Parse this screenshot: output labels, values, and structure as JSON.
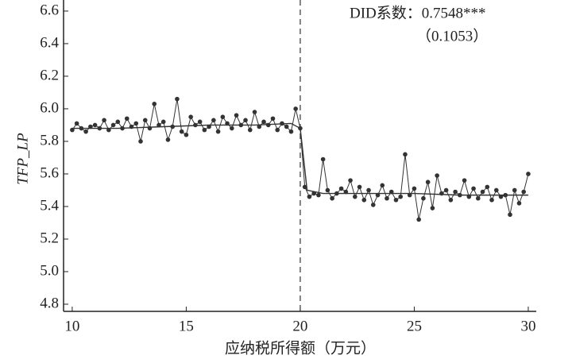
{
  "chart_data": {
    "type": "line",
    "y_label": "TFP_LP",
    "x_label": "应纳税所得额（万元）",
    "annotations": [
      "DID系数：0.7548***",
      "（0.1053）"
    ],
    "cutoff": 20,
    "xlim": [
      9.62,
      30.35
    ],
    "ylim": [
      4.756,
      6.668
    ],
    "xticks": [
      10,
      15,
      20,
      25,
      30
    ],
    "yticks": [
      {
        "value": 4.8,
        "label": "4.8"
      },
      {
        "value": 5,
        "label": "5.0"
      },
      5.2,
      5.4,
      5.6,
      5.8,
      {
        "value": 6,
        "label": "6.0"
      },
      6.2,
      6.4,
      6.6
    ],
    "series": [
      {
        "color": "#333333",
        "markers": true,
        "x": [
          10,
          10.2,
          10.4,
          10.6,
          10.8,
          11,
          11.2,
          11.4,
          11.6,
          11.8,
          12,
          12.2,
          12.4,
          12.6,
          12.8,
          13,
          13.2,
          13.4,
          13.6,
          13.8,
          14,
          14.2,
          14.4,
          14.6,
          14.8,
          15,
          15.2,
          15.4,
          15.6,
          15.8,
          16,
          16.2,
          16.4,
          16.6,
          16.8,
          17,
          17.2,
          17.4,
          17.6,
          17.8,
          18,
          18.2,
          18.4,
          18.6,
          18.8,
          19,
          19.2,
          19.4,
          19.6,
          19.8,
          20,
          20.2,
          20.4,
          20.6,
          20.8,
          21,
          21.2,
          21.4,
          21.6,
          21.8,
          22,
          22.2,
          22.4,
          22.6,
          22.8,
          23,
          23.2,
          23.4,
          23.6,
          23.8,
          24,
          24.2,
          24.4,
          24.6,
          24.8,
          25,
          25.2,
          25.4,
          25.6,
          25.8,
          26,
          26.2,
          26.4,
          26.6,
          26.8,
          27,
          27.2,
          27.4,
          27.6,
          27.8,
          28,
          28.2,
          28.4,
          28.6,
          28.8,
          29,
          29.2,
          29.4,
          29.6,
          29.8,
          30
        ],
        "values": [
          5.87,
          5.91,
          5.88,
          5.86,
          5.89,
          5.9,
          5.88,
          5.93,
          5.87,
          5.9,
          5.92,
          5.88,
          5.94,
          5.89,
          5.91,
          5.8,
          5.93,
          5.88,
          6.03,
          5.9,
          5.92,
          5.81,
          5.89,
          6.06,
          5.86,
          5.84,
          5.95,
          5.9,
          5.92,
          5.87,
          5.89,
          5.93,
          5.86,
          5.95,
          5.91,
          5.88,
          5.96,
          5.9,
          5.93,
          5.87,
          5.98,
          5.89,
          5.92,
          5.9,
          5.94,
          5.87,
          5.91,
          5.89,
          5.86,
          6.0,
          5.88,
          5.52,
          5.46,
          5.48,
          5.47,
          5.69,
          5.5,
          5.45,
          5.48,
          5.51,
          5.49,
          5.56,
          5.46,
          5.52,
          5.44,
          5.5,
          5.41,
          5.47,
          5.53,
          5.45,
          5.49,
          5.44,
          5.46,
          5.72,
          5.47,
          5.51,
          5.32,
          5.45,
          5.55,
          5.39,
          5.59,
          5.48,
          5.5,
          5.44,
          5.49,
          5.47,
          5.56,
          5.46,
          5.51,
          5.45,
          5.49,
          5.52,
          5.44,
          5.5,
          5.46,
          5.47,
          5.35,
          5.5,
          5.42,
          5.49,
          5.6
        ]
      },
      {
        "color": "#333333",
        "markers": false,
        "x": [
          10,
          12,
          14,
          16,
          18,
          19.6,
          20,
          20.3,
          21,
          23,
          25,
          27,
          29,
          30
        ],
        "values": [
          5.88,
          5.88,
          5.89,
          5.9,
          5.9,
          5.91,
          5.88,
          5.5,
          5.48,
          5.48,
          5.48,
          5.47,
          5.47,
          5.47
        ]
      }
    ]
  }
}
